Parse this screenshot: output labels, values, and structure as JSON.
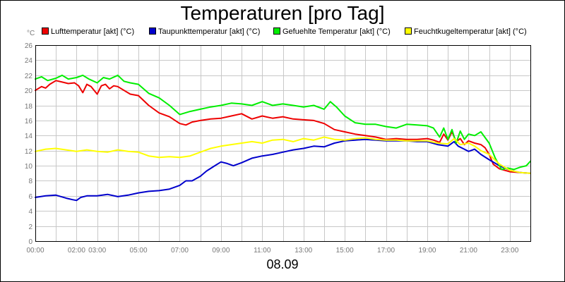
{
  "chart_data": {
    "type": "line",
    "title": "Temperaturen [pro Tag]",
    "ylabel": "°C",
    "xlabel": "08.09",
    "ylim": [
      0,
      26
    ],
    "yticks": [
      0,
      2,
      4,
      6,
      8,
      10,
      12,
      14,
      16,
      18,
      20,
      22,
      24,
      26
    ],
    "xlim": [
      0,
      24
    ],
    "x_tick_values": [
      0,
      2,
      3,
      5,
      7,
      9,
      11,
      13,
      15,
      17,
      19,
      21,
      23
    ],
    "x_tick_labels": [
      "00:00",
      "02:00",
      "03:00",
      "05:00",
      "07:00",
      "09:00",
      "11:00",
      "13:00",
      "15:00",
      "17:00",
      "19:00",
      "21:00",
      "23:00"
    ],
    "grid": true,
    "series": [
      {
        "name": "Lufttemperatur [akt] (°C)",
        "color": "#ee0000",
        "x": [
          0,
          0.3,
          0.5,
          0.7,
          1.0,
          1.3,
          1.6,
          1.9,
          2.1,
          2.3,
          2.5,
          2.7,
          3.0,
          3.2,
          3.4,
          3.6,
          3.8,
          4.0,
          4.3,
          4.6,
          5.0,
          5.5,
          6.0,
          6.5,
          7.0,
          7.3,
          7.6,
          8.0,
          8.5,
          9.0,
          9.5,
          10.0,
          10.5,
          11.0,
          11.5,
          12.0,
          12.5,
          13.0,
          13.5,
          14.0,
          14.5,
          15.0,
          15.5,
          16.0,
          16.5,
          17.0,
          17.5,
          18.0,
          18.5,
          19.0,
          19.3,
          19.6,
          19.8,
          20.0,
          20.2,
          20.4,
          20.6,
          20.8,
          21.0,
          21.3,
          21.6,
          21.8,
          22.0,
          22.2,
          22.5,
          23.0,
          23.5,
          24.0
        ],
        "y": [
          20.0,
          20.5,
          20.3,
          20.8,
          21.3,
          21.1,
          20.9,
          21.0,
          20.6,
          19.7,
          20.8,
          20.5,
          19.5,
          20.6,
          20.8,
          20.2,
          20.6,
          20.5,
          20.0,
          19.5,
          19.3,
          18.0,
          17.0,
          16.5,
          15.6,
          15.4,
          15.8,
          16.0,
          16.2,
          16.3,
          16.6,
          16.9,
          16.2,
          16.6,
          16.3,
          16.5,
          16.2,
          16.1,
          16.0,
          15.6,
          14.8,
          14.5,
          14.2,
          14.0,
          13.8,
          13.5,
          13.6,
          13.5,
          13.5,
          13.6,
          13.4,
          13.1,
          14.2,
          13.4,
          14.5,
          13.2,
          13.6,
          12.8,
          13.3,
          13.0,
          12.8,
          12.4,
          11.5,
          10.2,
          9.6,
          9.2,
          9.1,
          9.0
        ]
      },
      {
        "name": "Taupunkttemperatur [akt] (°C)",
        "color": "#0000cc",
        "x": [
          0,
          0.5,
          1.0,
          1.5,
          1.8,
          2.0,
          2.2,
          2.5,
          3.0,
          3.5,
          4.0,
          4.5,
          5.0,
          5.5,
          6.0,
          6.5,
          7.0,
          7.3,
          7.6,
          8.0,
          8.3,
          8.7,
          9.0,
          9.3,
          9.6,
          10.0,
          10.5,
          11.0,
          11.5,
          12.0,
          12.5,
          13.0,
          13.5,
          14.0,
          14.5,
          15.0,
          15.5,
          16.0,
          16.5,
          17.0,
          17.5,
          18.0,
          18.5,
          19.0,
          19.5,
          20.0,
          20.3,
          20.5,
          20.8,
          21.0,
          21.3,
          21.6,
          22.0,
          22.5,
          23.0,
          23.5,
          24.0
        ],
        "y": [
          5.8,
          6.0,
          6.1,
          5.7,
          5.5,
          5.4,
          5.8,
          6.0,
          6.0,
          6.2,
          5.9,
          6.1,
          6.4,
          6.6,
          6.7,
          6.9,
          7.4,
          8.0,
          8.0,
          8.6,
          9.3,
          10.0,
          10.5,
          10.3,
          10.0,
          10.4,
          11.0,
          11.3,
          11.5,
          11.8,
          12.1,
          12.3,
          12.6,
          12.5,
          13.0,
          13.3,
          13.4,
          13.5,
          13.4,
          13.3,
          13.3,
          13.3,
          13.2,
          13.2,
          12.8,
          12.6,
          13.2,
          12.6,
          12.2,
          11.9,
          12.2,
          11.5,
          10.8,
          10.0,
          9.4,
          9.1,
          9.0
        ]
      },
      {
        "name": "Gefuehlte Temperatur [akt] (°C)",
        "color": "#00ee00",
        "x": [
          0,
          0.3,
          0.6,
          1.0,
          1.3,
          1.6,
          2.0,
          2.3,
          2.6,
          3.0,
          3.3,
          3.6,
          4.0,
          4.3,
          4.6,
          5.0,
          5.5,
          6.0,
          6.5,
          7.0,
          7.5,
          8.0,
          8.5,
          9.0,
          9.5,
          10.0,
          10.5,
          11.0,
          11.5,
          12.0,
          12.5,
          13.0,
          13.5,
          14.0,
          14.3,
          14.6,
          15.0,
          15.5,
          16.0,
          16.5,
          17.0,
          17.5,
          18.0,
          18.5,
          19.0,
          19.3,
          19.6,
          19.8,
          20.0,
          20.2,
          20.4,
          20.6,
          20.8,
          21.0,
          21.3,
          21.6,
          22.0,
          22.3,
          22.6,
          22.9,
          23.2,
          23.5,
          23.8,
          24.0
        ],
        "y": [
          21.5,
          21.8,
          21.3,
          21.6,
          22.0,
          21.5,
          21.7,
          22.0,
          21.5,
          21.0,
          21.7,
          21.5,
          22.0,
          21.2,
          21.0,
          20.8,
          19.6,
          19.0,
          18.0,
          16.8,
          17.2,
          17.5,
          17.8,
          18.0,
          18.3,
          18.2,
          18.0,
          18.5,
          18.0,
          18.2,
          18.0,
          17.8,
          18.0,
          17.5,
          18.5,
          17.8,
          16.6,
          15.7,
          15.5,
          15.5,
          15.2,
          15.0,
          15.5,
          15.4,
          15.3,
          15.0,
          13.8,
          15.0,
          13.5,
          14.8,
          13.0,
          14.6,
          13.5,
          14.2,
          14.0,
          14.5,
          13.0,
          11.0,
          9.5,
          9.7,
          9.5,
          9.8,
          10.0,
          10.6
        ]
      },
      {
        "name": "Feuchtkugeltemperatur [akt] (°C)",
        "color": "#ffff00",
        "x": [
          0,
          0.5,
          1.0,
          1.5,
          2.0,
          2.5,
          3.0,
          3.5,
          4.0,
          4.5,
          5.0,
          5.5,
          6.0,
          6.5,
          7.0,
          7.5,
          8.0,
          8.5,
          9.0,
          9.5,
          10.0,
          10.5,
          11.0,
          11.5,
          12.0,
          12.5,
          13.0,
          13.5,
          14.0,
          14.5,
          15.0,
          15.5,
          16.0,
          16.5,
          17.0,
          17.5,
          18.0,
          18.5,
          19.0,
          19.5,
          20.0,
          20.3,
          20.6,
          21.0,
          21.3,
          21.6,
          22.0,
          22.5,
          23.0,
          23.5,
          24.0
        ],
        "y": [
          11.9,
          12.2,
          12.3,
          12.1,
          11.9,
          12.1,
          11.9,
          11.8,
          12.1,
          11.9,
          11.8,
          11.3,
          11.1,
          11.2,
          11.1,
          11.3,
          11.8,
          12.3,
          12.6,
          12.8,
          13.0,
          13.2,
          13.0,
          13.4,
          13.5,
          13.2,
          13.6,
          13.4,
          13.8,
          13.5,
          13.4,
          13.6,
          13.7,
          13.5,
          13.4,
          13.4,
          13.3,
          13.3,
          13.3,
          13.0,
          12.9,
          13.6,
          12.8,
          13.0,
          12.6,
          12.0,
          11.5,
          10.2,
          9.4,
          9.1,
          9.0
        ]
      }
    ]
  }
}
